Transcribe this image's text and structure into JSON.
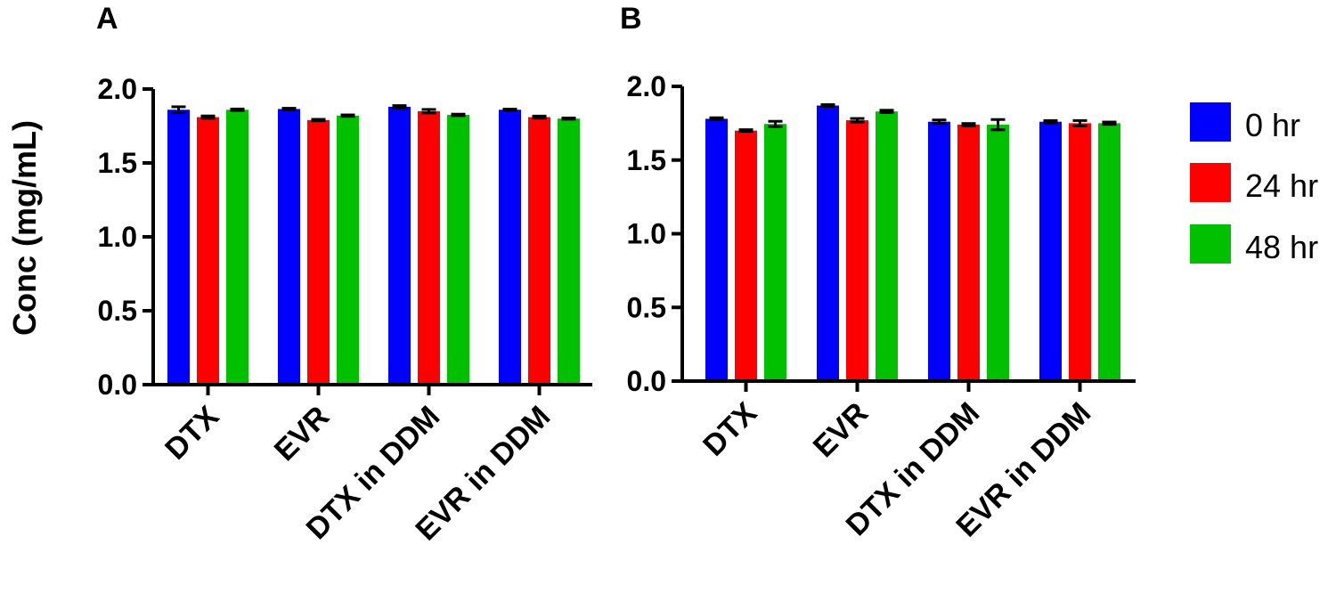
{
  "chart_data": [
    {
      "type": "bar",
      "panel_label": "A",
      "categories": [
        "DTX",
        "EVR",
        "DTX in DDM",
        "EVR in DDM"
      ],
      "ylabel": "Conc (mg/mL)",
      "ylim": [
        0,
        2.0
      ],
      "yticks": [
        "0.0",
        "0.5",
        "1.0",
        "1.5",
        "2.0"
      ],
      "series": [
        {
          "name": "0 hr",
          "color": "#0000ff",
          "values": [
            1.86,
            1.865,
            1.88,
            1.86
          ],
          "errors": [
            0.02,
            0.005,
            0.008,
            0.004
          ]
        },
        {
          "name": "24 hr",
          "color": "#ff0000",
          "values": [
            1.81,
            1.79,
            1.85,
            1.81
          ],
          "errors": [
            0.008,
            0.005,
            0.012,
            0.007
          ]
        },
        {
          "name": "48 hr",
          "color": "#00c000",
          "values": [
            1.86,
            1.82,
            1.825,
            1.8
          ],
          "errors": [
            0.005,
            0.005,
            0.005,
            0.004
          ]
        }
      ]
    },
    {
      "type": "bar",
      "panel_label": "B",
      "categories": [
        "DTX",
        "EVR",
        "DTX in DDM",
        "EVR in DDM"
      ],
      "ylabel": "",
      "ylim": [
        0,
        2.0
      ],
      "yticks": [
        "0.0",
        "0.5",
        "1.0",
        "1.5",
        "2.0"
      ],
      "series": [
        {
          "name": "0 hr",
          "color": "#0000ff",
          "values": [
            1.78,
            1.87,
            1.76,
            1.76
          ],
          "errors": [
            0.007,
            0.006,
            0.012,
            0.008
          ]
        },
        {
          "name": "24 hr",
          "color": "#ff0000",
          "values": [
            1.7,
            1.77,
            1.74,
            1.75
          ],
          "errors": [
            0.006,
            0.012,
            0.008,
            0.018
          ]
        },
        {
          "name": "48 hr",
          "color": "#00c000",
          "values": [
            1.745,
            1.83,
            1.74,
            1.75
          ],
          "errors": [
            0.018,
            0.008,
            0.035,
            0.008
          ]
        }
      ]
    }
  ],
  "legend": {
    "position": "right",
    "items": [
      {
        "label": "0 hr",
        "color": "#0000ff"
      },
      {
        "label": "24 hr",
        "color": "#ff0000"
      },
      {
        "label": "48 hr",
        "color": "#00c000"
      }
    ]
  }
}
